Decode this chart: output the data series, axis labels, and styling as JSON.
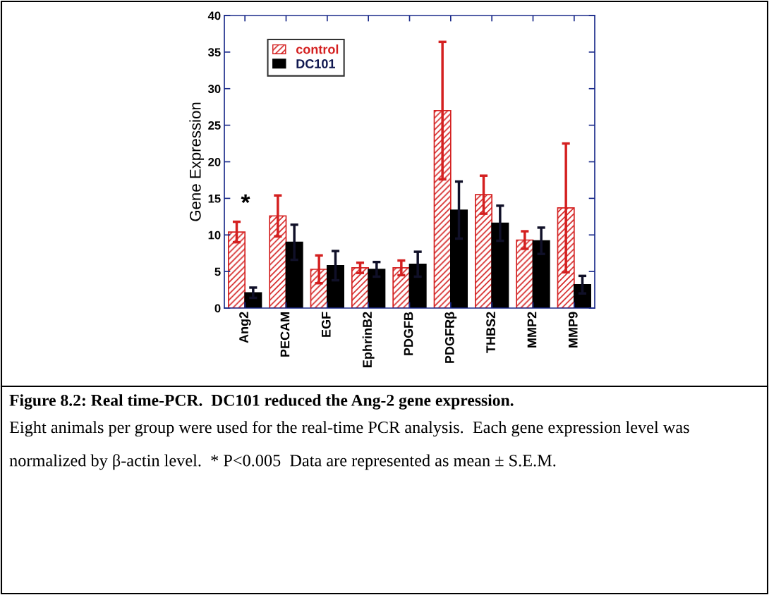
{
  "chart_data": {
    "type": "bar",
    "ylabel": "Gene Expression",
    "categories": [
      "Ang2",
      "PECAM",
      "EGF",
      "EphrinB2",
      "PDGFB",
      "PDGFRβ",
      "THBS2",
      "MMP2",
      "MMP9"
    ],
    "series": [
      {
        "name": "control",
        "color": "#d42020",
        "values": [
          10.4,
          12.6,
          5.3,
          5.5,
          5.5,
          27.0,
          15.5,
          9.3,
          13.7
        ],
        "errors": [
          1.4,
          2.8,
          1.9,
          0.7,
          1.0,
          9.4,
          2.6,
          1.2,
          8.8
        ]
      },
      {
        "name": "DC101",
        "color": "#000000",
        "values": [
          2.1,
          9.0,
          5.8,
          5.3,
          6.0,
          13.4,
          11.6,
          9.2,
          3.2
        ],
        "errors": [
          0.7,
          2.4,
          2.0,
          1.0,
          1.7,
          3.9,
          2.4,
          1.8,
          1.2
        ]
      }
    ],
    "ylim": [
      0,
      40
    ],
    "yticks": [
      0,
      5,
      10,
      15,
      20,
      25,
      30,
      35,
      40
    ],
    "grid": false,
    "legend": "top left",
    "annotations": [
      "*",
      "Figure 8.2: Real time-PCR.  DC101 reduced the Ang-2 gene expression.",
      "Eight animals per group were used for the real-time PCR analysis.  Each gene expression level was normalized by β-actin level.  * P<0.005  Data are represented as mean ± S.E.M."
    ]
  }
}
